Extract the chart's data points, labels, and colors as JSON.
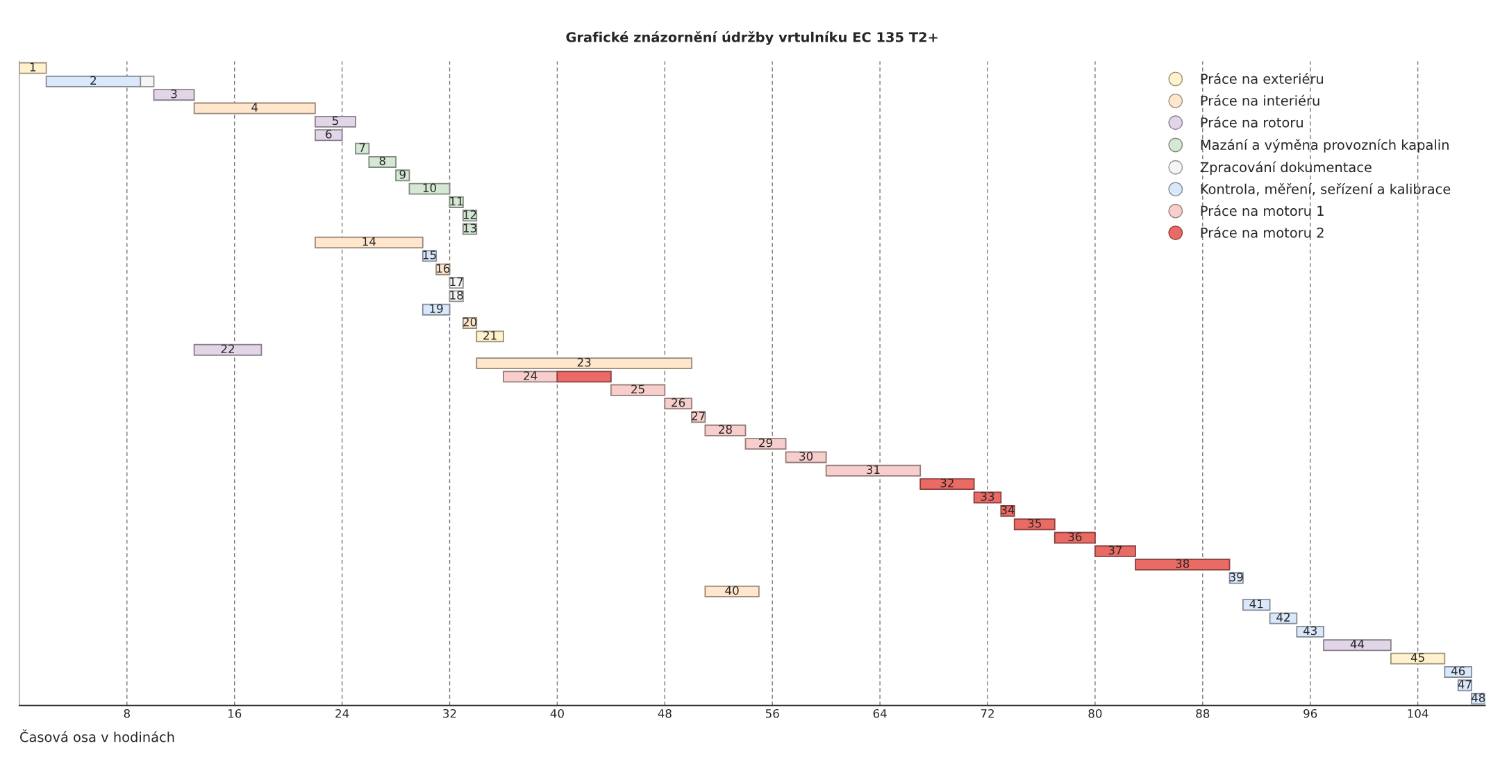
{
  "chart_data": {
    "type": "bar",
    "orientation": "horizontal",
    "title": "Grafické znázornění údržby vrtulníku EC 135 T2+",
    "xlabel": "Časová osa v hodinách",
    "categories": [
      "1",
      "2",
      "3",
      "4",
      "5",
      "6",
      "7",
      "8",
      "9",
      "10",
      "11",
      "12",
      "13",
      "14",
      "15",
      "16",
      "17",
      "18",
      "19",
      "20",
      "21",
      "22",
      "23",
      "24",
      "25",
      "26",
      "27",
      "28",
      "29",
      "30",
      "31",
      "32",
      "33",
      "34",
      "35",
      "36",
      "37",
      "38",
      "39",
      "40",
      "41",
      "42",
      "43",
      "44",
      "45",
      "46",
      "47",
      "48"
    ],
    "series": [
      {
        "name": "Práce na exteriéru",
        "color": "#fff2cc",
        "values": [
          2,
          null,
          null,
          null,
          null,
          null,
          null,
          null,
          null,
          null,
          null,
          null,
          null,
          null,
          null,
          null,
          null,
          null,
          null,
          null,
          2,
          null,
          null,
          null,
          null,
          null,
          null,
          null,
          null,
          null,
          null,
          null,
          null,
          null,
          null,
          null,
          null,
          null,
          null,
          null,
          null,
          null,
          null,
          null,
          4,
          null,
          null,
          null
        ],
        "base": [
          0,
          null,
          null,
          null,
          null,
          null,
          null,
          null,
          null,
          null,
          null,
          null,
          null,
          null,
          null,
          null,
          null,
          null,
          null,
          null,
          34,
          null,
          null,
          null,
          null,
          null,
          null,
          null,
          null,
          null,
          null,
          null,
          null,
          null,
          null,
          null,
          null,
          null,
          null,
          null,
          null,
          null,
          null,
          null,
          102,
          null,
          null,
          null
        ]
      },
      {
        "name": "Práce na interiéru",
        "color": "#ffe6cc",
        "values": [
          null,
          null,
          null,
          9,
          null,
          null,
          null,
          null,
          null,
          null,
          null,
          null,
          null,
          8,
          null,
          1,
          null,
          null,
          null,
          1,
          null,
          null,
          16,
          null,
          null,
          null,
          null,
          null,
          null,
          null,
          null,
          null,
          null,
          null,
          null,
          null,
          null,
          null,
          null,
          4,
          null,
          null,
          null,
          null,
          null,
          null,
          null,
          null
        ],
        "base": [
          null,
          null,
          null,
          13,
          null,
          null,
          null,
          null,
          null,
          null,
          null,
          null,
          null,
          22,
          null,
          31,
          null,
          null,
          null,
          33,
          null,
          null,
          34,
          null,
          null,
          null,
          null,
          null,
          null,
          null,
          null,
          null,
          null,
          null,
          null,
          null,
          null,
          null,
          null,
          51,
          null,
          null,
          null,
          null,
          null,
          null,
          null,
          null
        ]
      },
      {
        "name": "Práce na rotoru",
        "color": "#e1d5e7",
        "values": [
          null,
          null,
          3,
          null,
          3,
          2,
          null,
          null,
          null,
          null,
          null,
          null,
          null,
          null,
          null,
          null,
          null,
          null,
          null,
          null,
          null,
          5,
          null,
          null,
          null,
          null,
          null,
          null,
          null,
          null,
          null,
          null,
          null,
          null,
          null,
          null,
          null,
          null,
          null,
          null,
          null,
          null,
          null,
          5,
          null,
          null,
          null,
          null
        ],
        "base": [
          null,
          null,
          10,
          null,
          22,
          22,
          null,
          null,
          null,
          null,
          null,
          null,
          null,
          null,
          null,
          null,
          null,
          null,
          null,
          null,
          null,
          13,
          null,
          null,
          null,
          null,
          null,
          null,
          null,
          null,
          null,
          null,
          null,
          null,
          null,
          null,
          null,
          null,
          null,
          null,
          null,
          null,
          null,
          97,
          null,
          null,
          null,
          null
        ]
      },
      {
        "name": "Mazání a výměna provozních kapalin",
        "color": "#d5e8d4",
        "values": [
          null,
          null,
          null,
          null,
          null,
          null,
          1,
          2,
          1,
          3,
          1,
          1,
          1,
          null,
          null,
          null,
          null,
          null,
          null,
          null,
          null,
          null,
          null,
          null,
          null,
          null,
          null,
          null,
          null,
          null,
          null,
          null,
          null,
          null,
          null,
          null,
          null,
          null,
          null,
          null,
          null,
          null,
          null,
          null,
          null,
          null,
          null,
          null
        ],
        "base": [
          null,
          null,
          null,
          null,
          null,
          null,
          25,
          26,
          28,
          29,
          32,
          33,
          33,
          null,
          null,
          null,
          null,
          null,
          null,
          null,
          null,
          null,
          null,
          null,
          null,
          null,
          null,
          null,
          null,
          null,
          null,
          null,
          null,
          null,
          null,
          null,
          null,
          null,
          null,
          null,
          null,
          null,
          null,
          null,
          null,
          null,
          null,
          null
        ]
      },
      {
        "name": "Zpracování dokumentace",
        "color": "#f5f5f5",
        "values": [
          null,
          1,
          null,
          null,
          null,
          null,
          null,
          null,
          null,
          null,
          null,
          null,
          null,
          null,
          null,
          null,
          1,
          1,
          null,
          null,
          null,
          null,
          null,
          null,
          null,
          null,
          null,
          null,
          null,
          null,
          null,
          null,
          null,
          null,
          null,
          null,
          null,
          null,
          null,
          null,
          null,
          null,
          null,
          null,
          null,
          null,
          null,
          null
        ],
        "base": [
          null,
          9,
          null,
          null,
          null,
          null,
          null,
          null,
          null,
          null,
          null,
          null,
          null,
          null,
          null,
          null,
          32,
          32,
          null,
          null,
          null,
          null,
          null,
          null,
          null,
          null,
          null,
          null,
          null,
          null,
          null,
          null,
          null,
          null,
          null,
          null,
          null,
          null,
          null,
          null,
          null,
          null,
          null,
          null,
          null,
          null,
          null,
          null
        ]
      },
      {
        "name": "Kontrola, měření, seřízení a kalibrace",
        "color": "#dae8fc",
        "values": [
          null,
          7,
          null,
          null,
          null,
          null,
          null,
          null,
          null,
          null,
          null,
          null,
          null,
          null,
          1,
          null,
          null,
          null,
          2,
          null,
          null,
          null,
          null,
          null,
          null,
          null,
          null,
          null,
          null,
          null,
          null,
          null,
          null,
          null,
          null,
          null,
          null,
          null,
          1,
          null,
          2,
          2,
          2,
          null,
          null,
          2,
          1,
          1
        ],
        "base": [
          null,
          2,
          null,
          null,
          null,
          null,
          null,
          null,
          null,
          null,
          null,
          null,
          null,
          null,
          30,
          null,
          null,
          null,
          30,
          null,
          null,
          null,
          null,
          null,
          null,
          null,
          null,
          null,
          null,
          null,
          null,
          null,
          null,
          null,
          null,
          null,
          null,
          null,
          90,
          null,
          91,
          93,
          95,
          null,
          null,
          106,
          107,
          108
        ]
      },
      {
        "name": "Práce na motoru 1",
        "color": "#f8cecc",
        "values": [
          null,
          null,
          null,
          null,
          null,
          null,
          null,
          null,
          null,
          null,
          null,
          null,
          null,
          null,
          null,
          null,
          null,
          null,
          null,
          null,
          null,
          null,
          null,
          4,
          4,
          2,
          1,
          3,
          3,
          3,
          7,
          null,
          null,
          null,
          null,
          null,
          null,
          null,
          null,
          null,
          null,
          null,
          null,
          null,
          null,
          null,
          null,
          null
        ],
        "base": [
          null,
          null,
          null,
          null,
          null,
          null,
          null,
          null,
          null,
          null,
          null,
          null,
          null,
          null,
          null,
          null,
          null,
          null,
          null,
          null,
          null,
          null,
          null,
          36,
          44,
          48,
          50,
          51,
          54,
          57,
          60,
          null,
          null,
          null,
          null,
          null,
          null,
          null,
          null,
          null,
          null,
          null,
          null,
          null,
          null,
          null,
          null,
          null
        ]
      },
      {
        "name": "Práce na motoru 2",
        "color": "#ea6b66",
        "values": [
          null,
          null,
          null,
          null,
          null,
          null,
          null,
          null,
          null,
          null,
          null,
          null,
          null,
          null,
          null,
          null,
          null,
          null,
          null,
          null,
          null,
          null,
          null,
          4,
          null,
          null,
          null,
          null,
          null,
          null,
          null,
          4,
          2,
          1,
          3,
          3,
          3,
          7,
          null,
          null,
          null,
          null,
          null,
          null,
          null,
          null,
          null,
          null
        ],
        "base": [
          null,
          null,
          null,
          null,
          null,
          null,
          null,
          null,
          null,
          null,
          null,
          null,
          null,
          null,
          null,
          null,
          null,
          null,
          null,
          null,
          null,
          null,
          null,
          40,
          null,
          null,
          null,
          null,
          null,
          null,
          null,
          67,
          71,
          73,
          74,
          77,
          80,
          83,
          null,
          null,
          null,
          null,
          null,
          null,
          null,
          null,
          null,
          null
        ]
      }
    ],
    "xlim": [
      0,
      109
    ],
    "xticks": [
      8,
      16,
      24,
      32,
      40,
      48,
      56,
      64,
      72,
      80,
      88,
      96,
      104
    ],
    "grid": "x",
    "legend": "top right",
    "marker": "circle",
    "tick_labels": "x"
  }
}
